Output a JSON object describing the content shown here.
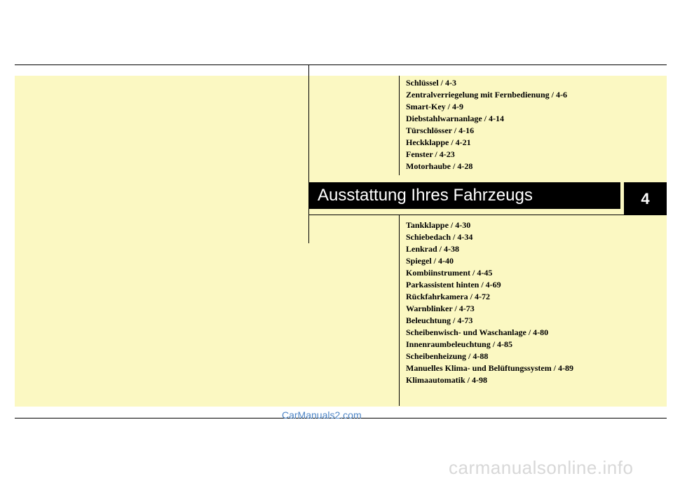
{
  "section": {
    "chapter_number": "4",
    "title": "Ausstattung Ihres Fahrzeugs"
  },
  "toc_top": [
    "Schlüssel / 4-3",
    "Zentralverriegelung mit Fernbedienung / 4-6",
    "Smart-Key / 4-9",
    "Diebstahlwarnanlage / 4-14",
    "Türschlösser / 4-16",
    "Heckklappe / 4-21",
    "Fenster / 4-23",
    "Motorhaube / 4-28"
  ],
  "toc_bottom": [
    "Tankklappe / 4-30",
    "Schiebedach / 4-34",
    "Lenkrad / 4-38",
    "Spiegel / 4-40",
    "Kombiinstrument / 4-45",
    "Parkassistent hinten / 4-69",
    "Rückfahrkamera / 4-72",
    "Warnblinker / 4-73",
    "Beleuchtung / 4-73",
    "Scheibenwisch- und Waschanlage / 4-80",
    "Innenraumbeleuchtung / 4-85",
    "Scheibenheizung / 4-88",
    "Manuelles Klima- und Belüftungssystem / 4-89",
    "Klimaautomatik / 4-98"
  ],
  "watermarks": {
    "top": "CarManuals2.com",
    "bottom": "carmanualsonline.info"
  }
}
